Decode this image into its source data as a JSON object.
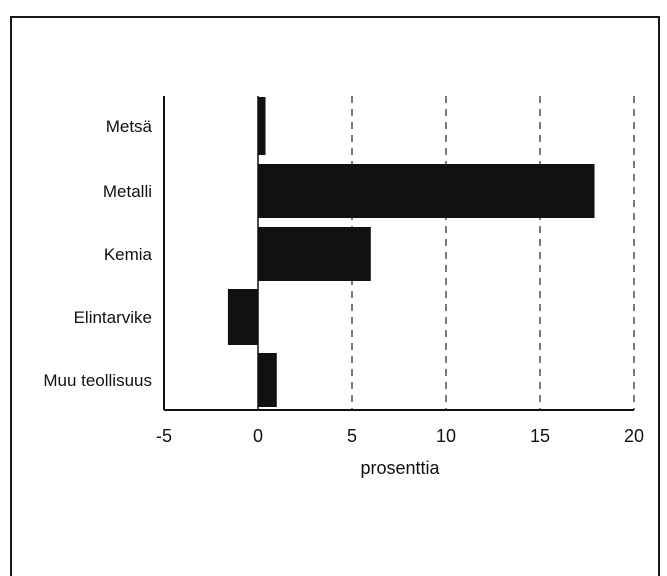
{
  "chart_data": {
    "type": "bar",
    "orientation": "horizontal",
    "categories": [
      "Metsä",
      "Metalli",
      "Kemia",
      "Elintarvike",
      "Muu teollisuus"
    ],
    "values": [
      0.4,
      17.9,
      6.0,
      -1.6,
      1.0
    ],
    "xlabel": "prosenttia",
    "ylabel": "",
    "xlim": [
      -5,
      20
    ],
    "xticks": [
      -5,
      0,
      5,
      10,
      15,
      20
    ],
    "grid": "vertical-dashed",
    "bar_color": "#111111"
  }
}
